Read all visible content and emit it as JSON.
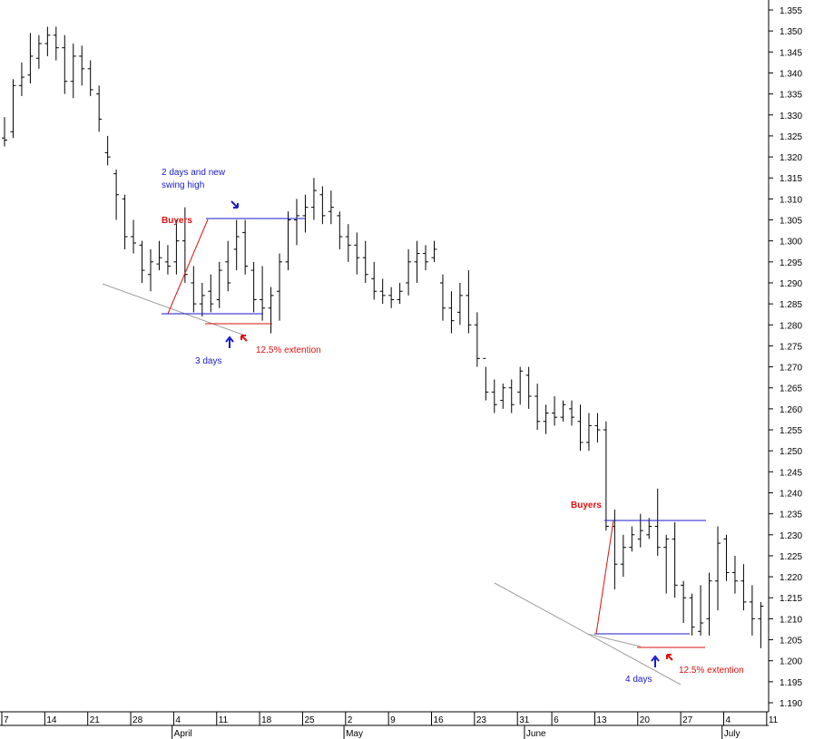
{
  "chart_data": {
    "type": "ohlc",
    "title": "",
    "xlabel": "",
    "ylabel": "",
    "ylim": [
      1.19,
      1.355
    ],
    "grid": false,
    "y_ticks": [
      "1.190",
      "1.195",
      "1.200",
      "1.205",
      "1.210",
      "1.215",
      "1.220",
      "1.225",
      "1.230",
      "1.235",
      "1.240",
      "1.245",
      "1.250",
      "1.255",
      "1.260",
      "1.265",
      "1.270",
      "1.275",
      "1.280",
      "1.285",
      "1.290",
      "1.295",
      "1.300",
      "1.305",
      "1.310",
      "1.315",
      "1.320",
      "1.325",
      "1.330",
      "1.335",
      "1.340",
      "1.345",
      "1.350",
      "1.355"
    ],
    "x_day_labels": [
      {
        "label": "7",
        "bar": 0
      },
      {
        "label": "14",
        "bar": 5
      },
      {
        "label": "21",
        "bar": 10
      },
      {
        "label": "28",
        "bar": 15
      },
      {
        "label": "4",
        "bar": 20
      },
      {
        "label": "11",
        "bar": 25
      },
      {
        "label": "18",
        "bar": 30
      },
      {
        "label": "25",
        "bar": 35
      },
      {
        "label": "2",
        "bar": 40
      },
      {
        "label": "9",
        "bar": 45
      },
      {
        "label": "16",
        "bar": 50
      },
      {
        "label": "23",
        "bar": 55
      },
      {
        "label": "31",
        "bar": 60
      },
      {
        "label": "6",
        "bar": 64
      },
      {
        "label": "13",
        "bar": 69
      },
      {
        "label": "20",
        "bar": 74
      },
      {
        "label": "27",
        "bar": 79
      },
      {
        "label": "4",
        "bar": 84
      },
      {
        "label": "11",
        "bar": 89
      }
    ],
    "x_month_labels": [
      {
        "label": "April",
        "bar": 19.5
      },
      {
        "label": "May",
        "bar": 39.5
      },
      {
        "label": "June",
        "bar": 60.5
      },
      {
        "label": "July",
        "bar": 83.5
      }
    ],
    "bars": [
      [
        1.3245,
        1.3295,
        1.3225,
        1.324
      ],
      [
        1.326,
        1.3385,
        1.3245,
        1.337
      ],
      [
        1.337,
        1.3425,
        1.3345,
        1.339
      ],
      [
        1.3395,
        1.3495,
        1.3375,
        1.344
      ],
      [
        1.3435,
        1.349,
        1.341,
        1.347
      ],
      [
        1.347,
        1.351,
        1.344,
        1.349
      ],
      [
        1.349,
        1.351,
        1.343,
        1.346
      ],
      [
        1.346,
        1.349,
        1.335,
        1.338
      ],
      [
        1.338,
        1.347,
        1.334,
        1.344
      ],
      [
        1.344,
        1.3465,
        1.337,
        1.341
      ],
      [
        1.341,
        1.343,
        1.3345,
        1.336
      ],
      [
        1.335,
        1.337,
        1.326,
        1.329
      ],
      [
        1.321,
        1.325,
        1.318,
        1.32
      ],
      [
        1.316,
        1.317,
        1.305,
        1.311
      ],
      [
        1.31,
        1.311,
        1.298,
        1.301
      ],
      [
        1.301,
        1.305,
        1.297,
        1.2995
      ],
      [
        1.299,
        1.3,
        1.29,
        1.293
      ],
      [
        1.292,
        1.298,
        1.288,
        1.295
      ],
      [
        1.2945,
        1.3,
        1.293,
        1.296
      ],
      [
        1.295,
        1.299,
        1.292,
        1.294
      ],
      [
        1.295,
        1.305,
        1.292,
        1.3
      ],
      [
        1.3,
        1.308,
        1.29,
        1.292
      ],
      [
        1.29,
        1.294,
        1.283,
        1.285
      ],
      [
        1.285,
        1.29,
        1.282,
        1.287
      ],
      [
        1.288,
        1.292,
        1.283,
        1.285
      ],
      [
        1.286,
        1.295,
        1.284,
        1.293
      ],
      [
        1.295,
        1.3,
        1.288,
        1.29
      ],
      [
        1.298,
        1.305,
        1.293,
        1.301
      ],
      [
        1.302,
        1.305,
        1.292,
        1.294
      ],
      [
        1.293,
        1.295,
        1.283,
        1.286
      ],
      [
        1.286,
        1.294,
        1.281,
        1.284
      ],
      [
        1.284,
        1.289,
        1.278,
        1.287
      ],
      [
        1.288,
        1.297,
        1.281,
        1.295
      ],
      [
        1.295,
        1.307,
        1.293,
        1.305
      ],
      [
        1.305,
        1.31,
        1.299,
        1.306
      ],
      [
        1.306,
        1.311,
        1.302,
        1.308
      ],
      [
        1.308,
        1.315,
        1.305,
        1.312
      ],
      [
        1.311,
        1.313,
        1.304,
        1.306
      ],
      [
        1.307,
        1.312,
        1.304,
        1.308
      ],
      [
        1.306,
        1.307,
        1.298,
        1.301
      ],
      [
        1.301,
        1.304,
        1.295,
        1.299
      ],
      [
        1.299,
        1.302,
        1.292,
        1.296
      ],
      [
        1.296,
        1.3,
        1.29,
        1.292
      ],
      [
        1.291,
        1.295,
        1.286,
        1.288
      ],
      [
        1.288,
        1.291,
        1.285,
        1.287
      ],
      [
        1.287,
        1.289,
        1.284,
        1.286
      ],
      [
        1.286,
        1.29,
        1.285,
        1.288
      ],
      [
        1.29,
        1.298,
        1.287,
        1.295
      ],
      [
        1.295,
        1.3,
        1.29,
        1.297
      ],
      [
        1.297,
        1.299,
        1.293,
        1.295
      ],
      [
        1.296,
        1.3,
        1.295,
        1.298
      ],
      [
        1.29,
        1.292,
        1.281,
        1.284
      ],
      [
        1.284,
        1.288,
        1.278,
        1.281
      ],
      [
        1.283,
        1.29,
        1.28,
        1.287
      ],
      [
        1.287,
        1.293,
        1.278,
        1.28
      ],
      [
        1.28,
        1.283,
        1.27,
        1.272
      ],
      [
        1.272,
        1.27,
        1.262,
        1.264
      ],
      [
        1.264,
        1.267,
        1.259,
        1.261
      ],
      [
        1.262,
        1.266,
        1.26,
        1.265
      ],
      [
        1.265,
        1.267,
        1.259,
        1.261
      ],
      [
        1.264,
        1.27,
        1.261,
        1.269
      ],
      [
        1.268,
        1.27,
        1.26,
        1.263
      ],
      [
        1.263,
        1.266,
        1.255,
        1.257
      ],
      [
        1.257,
        1.261,
        1.254,
        1.259
      ],
      [
        1.259,
        1.263,
        1.256,
        1.258
      ],
      [
        1.258,
        1.262,
        1.257,
        1.261
      ],
      [
        1.26,
        1.262,
        1.256,
        1.258
      ],
      [
        1.257,
        1.261,
        1.25,
        1.252
      ],
      [
        1.252,
        1.259,
        1.25,
        1.256
      ],
      [
        1.256,
        1.259,
        1.252,
        1.255
      ],
      [
        1.255,
        1.257,
        1.231,
        1.232
      ],
      [
        1.232,
        1.236,
        1.217,
        1.223
      ],
      [
        1.223,
        1.23,
        1.22,
        1.227
      ],
      [
        1.227,
        1.232,
        1.226,
        1.23
      ],
      [
        1.229,
        1.235,
        1.227,
        1.231
      ],
      [
        1.23,
        1.234,
        1.229,
        1.232
      ],
      [
        1.232,
        1.241,
        1.225,
        1.227
      ],
      [
        1.227,
        1.23,
        1.216,
        1.229
      ],
      [
        1.229,
        1.233,
        1.215,
        1.218
      ],
      [
        1.218,
        1.219,
        1.209,
        1.215
      ],
      [
        1.215,
        1.216,
        1.206,
        1.208
      ],
      [
        1.207,
        1.218,
        1.206,
        1.209
      ],
      [
        1.21,
        1.221,
        1.206,
        1.219
      ],
      [
        1.219,
        1.232,
        1.212,
        1.228
      ],
      [
        1.229,
        1.23,
        1.219,
        1.221
      ],
      [
        1.221,
        1.225,
        1.216,
        1.219
      ],
      [
        1.219,
        1.223,
        1.212,
        1.214
      ],
      [
        1.214,
        1.218,
        1.206,
        1.21
      ],
      [
        1.21,
        1.214,
        1.203,
        1.213
      ]
    ]
  },
  "annotations": {
    "swing_note": [
      "2 days and new",
      "swing high"
    ],
    "buyers_1": "Buyers",
    "buyers_2": "Buyers",
    "days_1": "3 days",
    "days_2": "4 days",
    "ext_1": "12.5% extention",
    "ext_2": "12.5% extention",
    "colors": {
      "blue": "#1a1acc",
      "red": "#dd1111",
      "gray": "#a0a0a0",
      "bars": "#000000"
    }
  }
}
